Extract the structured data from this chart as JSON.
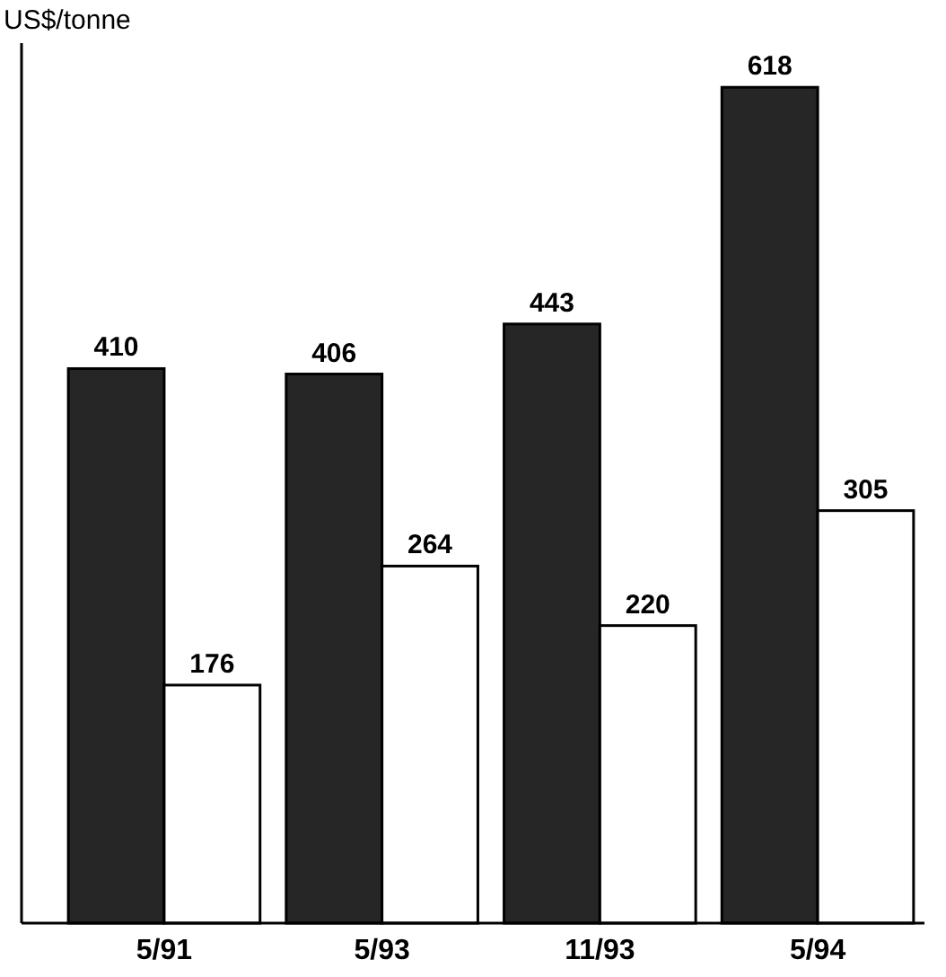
{
  "chart_data": {
    "type": "bar",
    "ylabel": "US$/tonne",
    "categories": [
      "5/91",
      "5/93",
      "11/93",
      "5/94"
    ],
    "series": [
      {
        "color": "#262626",
        "values": [
          410,
          406,
          443,
          618
        ]
      },
      {
        "color": "#ffffff",
        "values": [
          176,
          264,
          220,
          305
        ]
      }
    ],
    "data_labels": true
  }
}
